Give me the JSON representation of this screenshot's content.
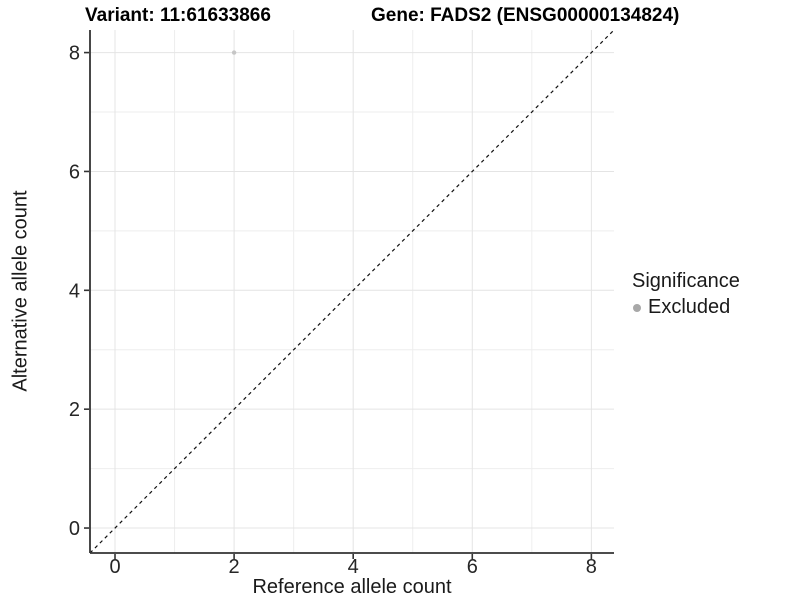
{
  "header": {
    "variant_title": "Variant: 11:61633866",
    "gene_title": "Gene: FADS2 (ENSG00000134824)"
  },
  "axes": {
    "x_title": "Reference allele count",
    "y_title": "Alternative allele count"
  },
  "legend": {
    "title": "Significance",
    "entries": [
      {
        "label": "Excluded",
        "color": "#a8a8a8"
      }
    ]
  },
  "chart_data": {
    "type": "scatter",
    "title": "Variant: 11:61633866 / Gene: FADS2 (ENSG00000134824)",
    "xlabel": "Reference allele count",
    "ylabel": "Alternative allele count",
    "xlim": [
      -0.42,
      8.38
    ],
    "ylim": [
      -0.42,
      8.38
    ],
    "x_ticks": [
      0,
      2,
      4,
      6,
      8
    ],
    "y_ticks": [
      0,
      2,
      4,
      6,
      8
    ],
    "x_minor_ticks": [
      1,
      3,
      5,
      7
    ],
    "y_minor_ticks": [
      1,
      3,
      5,
      7
    ],
    "grid": "on",
    "legend_position": "right",
    "series": [
      {
        "name": "Excluded",
        "color": "#c6c6c6",
        "marker_radius": 2.2,
        "points": [
          {
            "x": 2,
            "y": 8
          }
        ]
      }
    ],
    "reference_line": {
      "type": "identity_abline",
      "slope": 1,
      "intercept": 0,
      "linestyle": "dashed",
      "color": "#111111"
    },
    "style": {
      "grid_major_color": "#e4e4e4",
      "grid_minor_color": "#eeeeee",
      "axis_line_color": "#333333",
      "tick_color": "#333333",
      "tick_label_color": "#262626",
      "legend_point_color": "#a8a8a8",
      "background": "#ffffff"
    }
  }
}
